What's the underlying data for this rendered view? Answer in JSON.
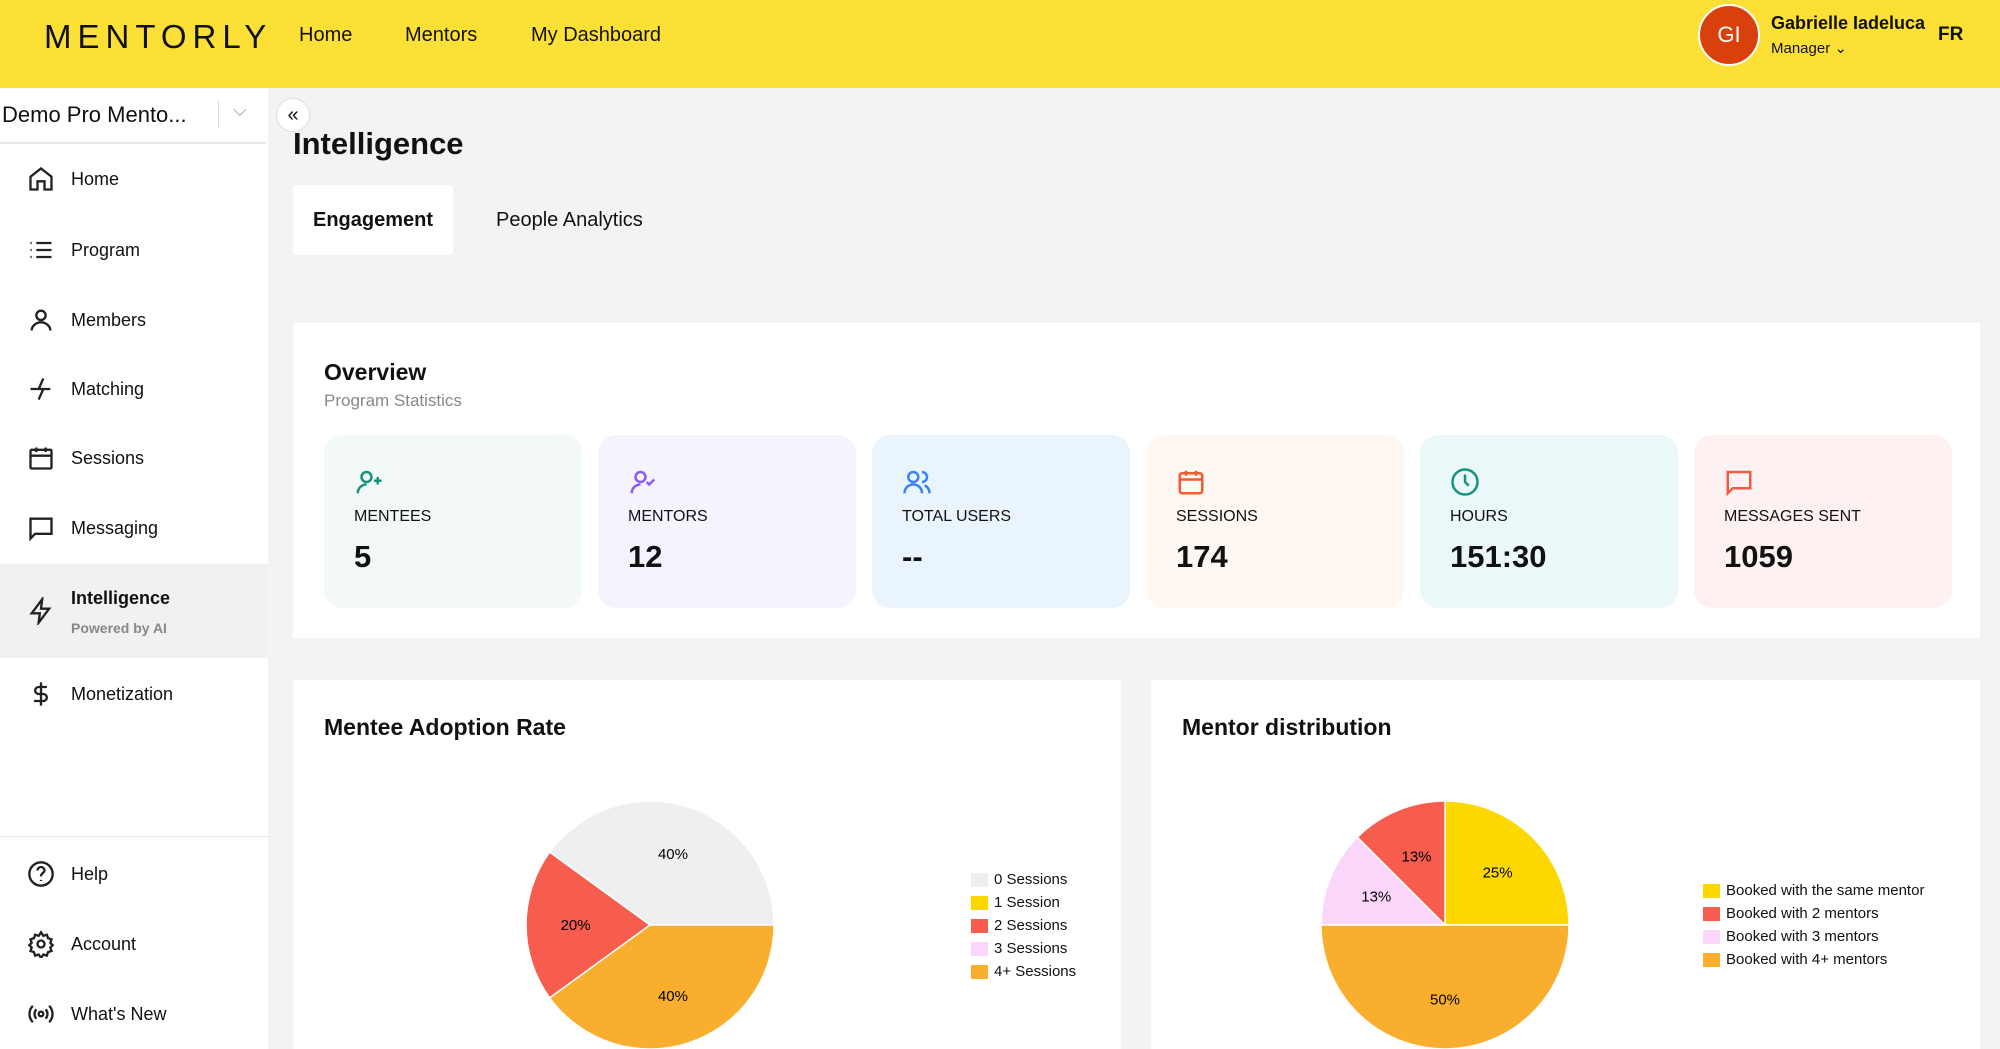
{
  "header": {
    "logo": "MENTORLY",
    "nav": [
      "Home",
      "Mentors",
      "My Dashboard"
    ],
    "user": {
      "initials": "GI",
      "name": "Gabrielle Iadeluca",
      "role": "Manager"
    },
    "language": "FR",
    "brand_color": "#fde036"
  },
  "sidebar": {
    "org": "Demo Pro Mento...",
    "items": [
      {
        "label": "Home",
        "icon": "home-icon"
      },
      {
        "label": "Program",
        "icon": "list-icon"
      },
      {
        "label": "Members",
        "icon": "user-icon"
      },
      {
        "label": "Matching",
        "icon": "matching-icon"
      },
      {
        "label": "Sessions",
        "icon": "calendar-icon"
      },
      {
        "label": "Messaging",
        "icon": "message-icon"
      },
      {
        "label": "Intelligence",
        "sub": "Powered by AI",
        "icon": "bolt-icon",
        "active": true
      },
      {
        "label": "Monetization",
        "icon": "dollar-icon"
      }
    ],
    "bottom": [
      {
        "label": "Help",
        "icon": "help-icon"
      },
      {
        "label": "Account",
        "icon": "gear-icon"
      },
      {
        "label": "What's New",
        "icon": "broadcast-icon"
      }
    ]
  },
  "page": {
    "title": "Intelligence",
    "tabs": [
      "Engagement",
      "People Analytics"
    ],
    "active_tab": "Engagement"
  },
  "overview": {
    "title": "Overview",
    "subtitle": "Program Statistics",
    "stats": [
      {
        "label": "MENTEES",
        "value": "5",
        "icon": "user-plus-icon",
        "color": "#16937f",
        "bg": "#f3f9f7"
      },
      {
        "label": "MENTORS",
        "value": "12",
        "icon": "user-check-icon",
        "color": "#8b5cf6",
        "bg": "#f5f3fe"
      },
      {
        "label": "TOTAL USERS",
        "value": "--",
        "icon": "users-icon",
        "color": "#3b82f6",
        "bg": "#eaf4fd"
      },
      {
        "label": "SESSIONS",
        "value": "174",
        "icon": "calendar-icon",
        "color": "#f25a32",
        "bg": "#fef7f2"
      },
      {
        "label": "HOURS",
        "value": "151:30",
        "icon": "clock-icon",
        "color": "#16937f",
        "bg": "#ebf8f9"
      },
      {
        "label": "MESSAGES SENT",
        "value": "1059",
        "icon": "message-icon",
        "color": "#f25a4a",
        "bg": "#fdf2f1"
      }
    ]
  },
  "chart_data": [
    {
      "type": "pie",
      "title": "Mentee Adoption Rate",
      "categories": [
        "0 Sessions",
        "1 Session",
        "2 Sessions",
        "3 Sessions",
        "4+ Sessions"
      ],
      "values": [
        40,
        0,
        20,
        0,
        40
      ],
      "labels": [
        "40%",
        "",
        "20%",
        "",
        "40%"
      ],
      "colors": [
        "#eeeff1",
        "#fdd700",
        "#f65d4e",
        "#fbd6fb",
        "#f9ae2e"
      ],
      "legend": "right"
    },
    {
      "type": "pie",
      "title": "Mentor distribution",
      "categories": [
        "Booked with the same mentor",
        "Booked with 2 mentors",
        "Booked with 3 mentors",
        "Booked with 4+ mentors"
      ],
      "values": [
        25,
        12.5,
        12.5,
        50
      ],
      "labels": [
        "25%",
        "13%",
        "13%",
        "50%"
      ],
      "colors": [
        "#fdd700",
        "#f65d4e",
        "#fbd6fb",
        "#f9ae2e"
      ],
      "legend": "right"
    }
  ]
}
